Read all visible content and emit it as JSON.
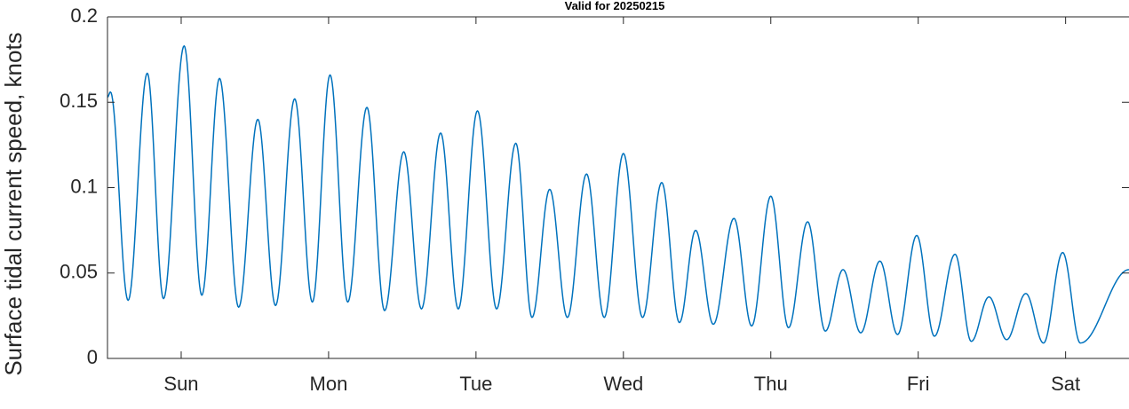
{
  "chart_data": {
    "type": "line",
    "title": "Valid for 20250215",
    "xlabel": "",
    "ylabel": "Surface tidal current speed, knots",
    "xlim": [
      0,
      6.93
    ],
    "ylim": [
      0,
      0.2
    ],
    "grid": false,
    "legend": "none",
    "x_tick_values": [
      0.5,
      1.5,
      2.5,
      3.5,
      4.5,
      5.5,
      6.5
    ],
    "x_tick_labels": [
      "Sun",
      "Mon",
      "Tue",
      "Wed",
      "Thu",
      "Fri",
      "Sat"
    ],
    "y_tick_values": [
      0,
      0.05,
      0.1,
      0.15,
      0.2
    ],
    "y_tick_labels": [
      "0",
      "0.05",
      "0.1",
      "0.15",
      "0.2"
    ],
    "series": [
      {
        "color": "#0072bd",
        "note_x_units": "days from left edge of axis",
        "start": [
          0,
          0.153
        ],
        "extrema": [
          [
            0.02,
            0.156
          ],
          [
            0.14,
            0.034
          ],
          [
            0.27,
            0.167
          ],
          [
            0.38,
            0.035
          ],
          [
            0.52,
            0.183
          ],
          [
            0.64,
            0.037
          ],
          [
            0.76,
            0.164
          ],
          [
            0.89,
            0.03
          ],
          [
            1.02,
            0.14
          ],
          [
            1.14,
            0.031
          ],
          [
            1.27,
            0.152
          ],
          [
            1.39,
            0.033
          ],
          [
            1.51,
            0.166
          ],
          [
            1.63,
            0.033
          ],
          [
            1.76,
            0.147
          ],
          [
            1.88,
            0.028
          ],
          [
            2.01,
            0.121
          ],
          [
            2.13,
            0.029
          ],
          [
            2.26,
            0.132
          ],
          [
            2.38,
            0.029
          ],
          [
            2.51,
            0.145
          ],
          [
            2.64,
            0.029
          ],
          [
            2.77,
            0.126
          ],
          [
            2.88,
            0.024
          ],
          [
            3.0,
            0.099
          ],
          [
            3.12,
            0.024
          ],
          [
            3.25,
            0.108
          ],
          [
            3.37,
            0.024
          ],
          [
            3.5,
            0.12
          ],
          [
            3.63,
            0.024
          ],
          [
            3.76,
            0.103
          ],
          [
            3.88,
            0.021
          ],
          [
            3.99,
            0.075
          ],
          [
            4.11,
            0.02
          ],
          [
            4.25,
            0.082
          ],
          [
            4.37,
            0.019
          ],
          [
            4.5,
            0.095
          ],
          [
            4.62,
            0.018
          ],
          [
            4.75,
            0.08
          ],
          [
            4.87,
            0.016
          ],
          [
            4.99,
            0.052
          ],
          [
            5.11,
            0.015
          ],
          [
            5.24,
            0.057
          ],
          [
            5.36,
            0.014
          ],
          [
            5.49,
            0.072
          ],
          [
            5.61,
            0.013
          ],
          [
            5.75,
            0.061
          ],
          [
            5.86,
            0.01
          ],
          [
            5.98,
            0.036
          ],
          [
            6.1,
            0.011
          ],
          [
            6.23,
            0.038
          ],
          [
            6.35,
            0.009
          ],
          [
            6.48,
            0.062
          ],
          [
            6.6,
            0.009
          ]
        ],
        "end": [
          6.93,
          0.052
        ]
      }
    ]
  }
}
